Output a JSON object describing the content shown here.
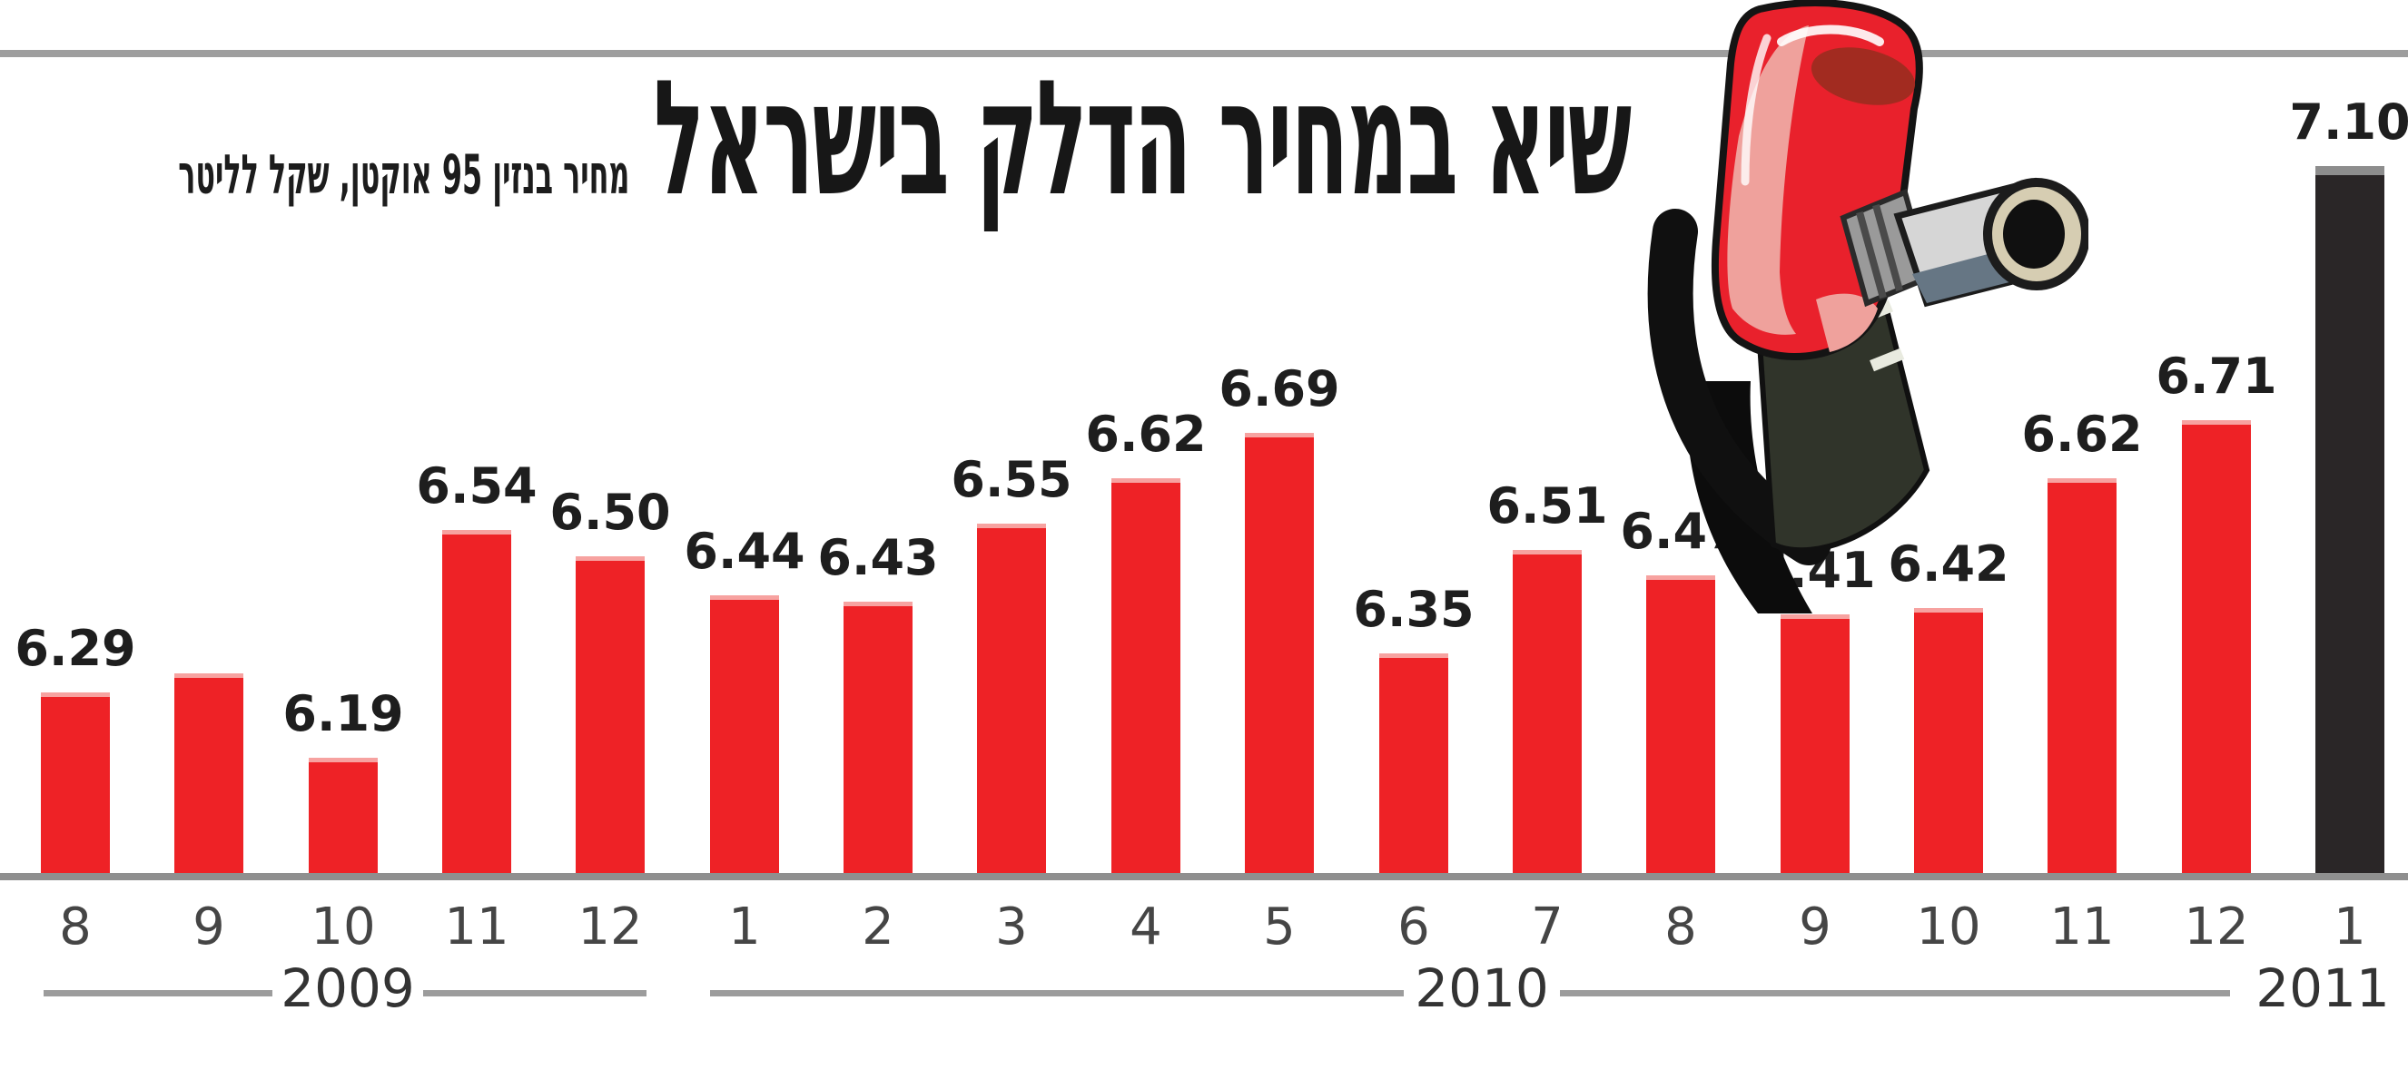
{
  "header": {
    "title": "שיא במחיר הדלק בישראל",
    "subtitle": "מחיר בנזין 95 אוקטן, שקל לליטר"
  },
  "chart_data": {
    "type": "bar",
    "title": "שיא במחיר הדלק בישראל",
    "unit_note": "מחיר בנזין 95 אוקטן, שקל לליטר",
    "grid": false,
    "ylim_implied": [
      6.0,
      7.2
    ],
    "bars": [
      {
        "month": "8",
        "year": "2009",
        "value": 6.29,
        "label": "6.29",
        "color": "red"
      },
      {
        "month": "9",
        "year": "2009",
        "value": 6.32,
        "label": null,
        "color": "red"
      },
      {
        "month": "10",
        "year": "2009",
        "value": 6.19,
        "label": "6.19",
        "color": "red"
      },
      {
        "month": "11",
        "year": "2009",
        "value": 6.54,
        "label": "6.54",
        "color": "red"
      },
      {
        "month": "12",
        "year": "2009",
        "value": 6.5,
        "label": "6.50",
        "color": "red"
      },
      {
        "month": "1",
        "year": "2010",
        "value": 6.44,
        "label": "6.44",
        "color": "red"
      },
      {
        "month": "2",
        "year": "2010",
        "value": 6.43,
        "label": "6.43",
        "color": "red"
      },
      {
        "month": "3",
        "year": "2010",
        "value": 6.55,
        "label": "6.55",
        "color": "red"
      },
      {
        "month": "4",
        "year": "2010",
        "value": 6.62,
        "label": "6.62",
        "color": "red"
      },
      {
        "month": "5",
        "year": "2010",
        "value": 6.69,
        "label": "6.69",
        "color": "red"
      },
      {
        "month": "6",
        "year": "2010",
        "value": 6.35,
        "label": "6.35",
        "color": "red"
      },
      {
        "month": "7",
        "year": "2010",
        "value": 6.51,
        "label": "6.51",
        "color": "red"
      },
      {
        "month": "8",
        "year": "2010",
        "value": 6.47,
        "label": "6.47",
        "color": "red"
      },
      {
        "month": "9",
        "year": "2010",
        "value": 6.41,
        "label": "6.41",
        "color": "red"
      },
      {
        "month": "10",
        "year": "2010",
        "value": 6.42,
        "label": "6.42",
        "color": "red"
      },
      {
        "month": "11",
        "year": "2010",
        "value": 6.62,
        "label": "6.62",
        "color": "red"
      },
      {
        "month": "12",
        "year": "2010",
        "value": 6.71,
        "label": "6.71",
        "color": "red"
      },
      {
        "month": "1",
        "year": "2011",
        "value": 7.1,
        "label": "7.10",
        "color": "black"
      }
    ],
    "year_groups": [
      {
        "label": "2009"
      },
      {
        "label": "2010"
      },
      {
        "label": "2011"
      }
    ],
    "colors": {
      "bar_red": "#ee2226",
      "bar_black": "#2a2627",
      "axis_line": "#8f8f8f",
      "top_rule": "#9e9e9e",
      "year_line": "#9c9c9c"
    }
  },
  "illustration": {
    "name": "fuel-pump-nozzle",
    "body_color": "#e9212c",
    "highlight_color": "#efa19c",
    "hose_color": "#0c0c0c",
    "spout_color": "#d6d6d6"
  }
}
